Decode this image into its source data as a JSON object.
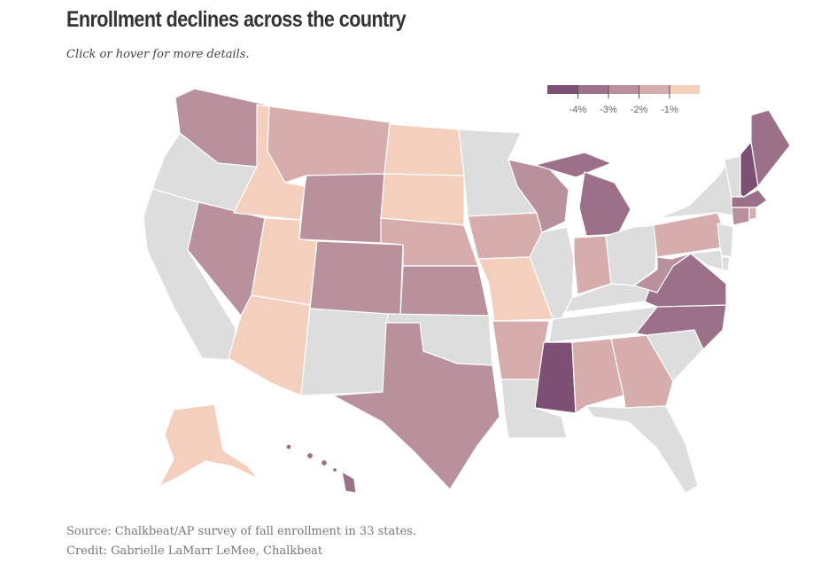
{
  "header": {
    "title": "Enrollment declines across the country",
    "subtitle": "Click or hover for more details."
  },
  "footer": {
    "source": "Source: Chalkbeat/AP survey of fall enrollment in 33 states.",
    "credit": "Credit: Gabrielle LaMarr LeMee, Chalkbeat"
  },
  "legend": {
    "scale_colors": [
      "#7d4f73",
      "#9c7089",
      "#b8919c",
      "#d6adac",
      "#f4cfbd"
    ],
    "ticks": [
      "-4%",
      "-3%",
      "-2%",
      "-1%"
    ]
  },
  "colors": {
    "no_data": "#dddddd",
    "bin_under_1": "#f4cfbd",
    "bin_1_to_2": "#d6adac",
    "bin_2_to_3": "#b8919c",
    "bin_3_to_4": "#9c7089",
    "bin_over_4": "#7d4f73"
  },
  "states": {
    "WA": "bin_2_to_3",
    "OR": "no_data",
    "CA": "no_data",
    "NV": "bin_2_to_3",
    "ID": "bin_under_1",
    "MT": "bin_1_to_2",
    "WY": "bin_2_to_3",
    "UT": "bin_under_1",
    "AZ": "bin_under_1",
    "CO": "bin_2_to_3",
    "NM": "no_data",
    "ND": "bin_under_1",
    "SD": "bin_under_1",
    "NE": "bin_1_to_2",
    "KS": "bin_2_to_3",
    "OK": "no_data",
    "TX": "bin_2_to_3",
    "MN": "no_data",
    "IA": "bin_1_to_2",
    "MO": "bin_under_1",
    "AR": "bin_1_to_2",
    "LA": "no_data",
    "WI": "bin_2_to_3",
    "IL": "no_data",
    "MI": "bin_3_to_4",
    "IN": "bin_1_to_2",
    "OH": "no_data",
    "KY": "no_data",
    "TN": "no_data",
    "MS": "bin_over_4",
    "AL": "bin_1_to_2",
    "GA": "bin_1_to_2",
    "FL": "no_data",
    "SC": "no_data",
    "NC": "bin_3_to_4",
    "VA": "bin_3_to_4",
    "WV": "bin_2_to_3",
    "PA": "bin_1_to_2",
    "NY": "no_data",
    "VT": "no_data",
    "NH": "bin_over_4",
    "ME": "bin_3_to_4",
    "MA": "bin_3_to_4",
    "CT": "bin_2_to_3",
    "RI": "bin_1_to_2",
    "NJ": "no_data",
    "DE": "no_data",
    "MD": "no_data",
    "AK": "bin_under_1",
    "HI": "bin_3_to_4"
  }
}
